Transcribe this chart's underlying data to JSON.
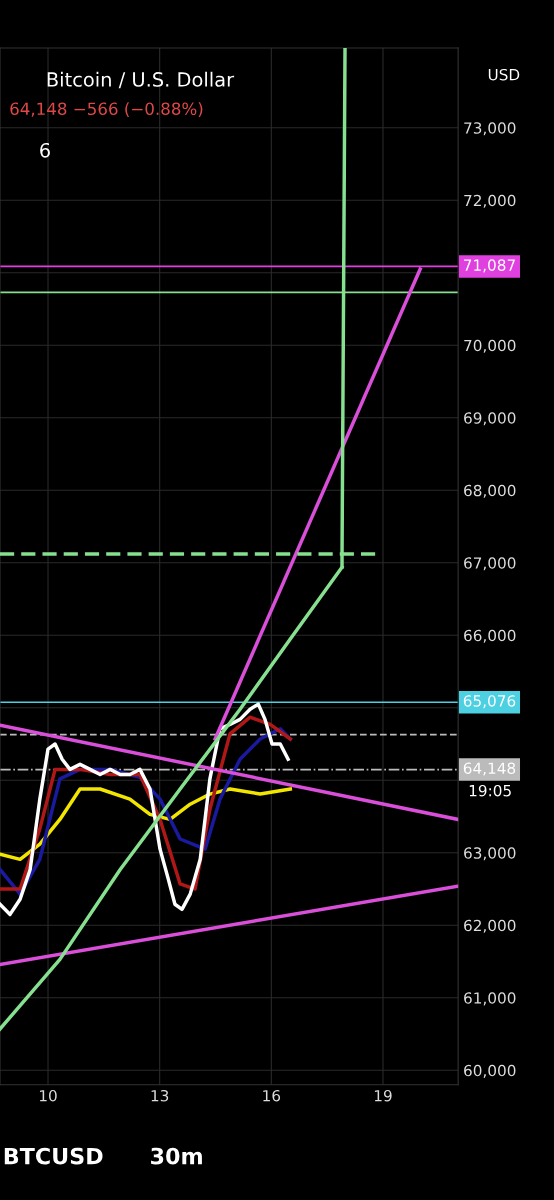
{
  "chart_data": {
    "type": "line",
    "title": "Bitcoin / U.S. Dollar",
    "subtitle": "64,148 −566 (−0.88%)",
    "annotations": [
      "6",
      "USD",
      "19:05",
      "BTCUSD",
      "30m"
    ],
    "xlim": [
      8.71,
      21.02
    ],
    "xticks": [
      10,
      13,
      16,
      19
    ],
    "ylim": [
      59800,
      74100
    ],
    "yticks": [
      {
        "value": 60000,
        "label": "60,000"
      },
      {
        "value": 61000,
        "label": "61,000"
      },
      {
        "value": 62000,
        "label": "62,000"
      },
      {
        "value": 63000,
        "label": "63,000"
      },
      {
        "value": 64000,
        "label": null
      },
      {
        "value": 65000,
        "label": null
      },
      {
        "value": 66000,
        "label": "66,000"
      },
      {
        "value": 67000,
        "label": "67,000"
      },
      {
        "value": 68000,
        "label": "68,000"
      },
      {
        "value": 69000,
        "label": "69,000"
      },
      {
        "value": 70000,
        "label": "70,000"
      },
      {
        "value": 71000,
        "label": null
      },
      {
        "value": 72000,
        "label": "72,000"
      },
      {
        "value": 73000,
        "label": "73,000"
      }
    ],
    "grid": true,
    "legend": false,
    "marker": "none",
    "line_style": "solid",
    "series": [
      {
        "color": "#f2e600",
        "x": [
          8.71,
          9.25,
          9.78,
          10.32,
          10.86,
          11.4,
          12.2,
          12.74,
          13.28,
          13.82,
          14.35,
          14.89,
          15.7,
          16.51
        ],
        "values": [
          62980,
          62910,
          63120,
          63460,
          63880,
          63880,
          63740,
          63530,
          63460,
          63670,
          63810,
          63880,
          63810,
          63880
        ]
      },
      {
        "color": "#1a1aa0",
        "x": [
          8.71,
          9.25,
          9.78,
          10.32,
          10.86,
          11.67,
          12.47,
          13.01,
          13.55,
          14.22,
          14.62,
          15.16,
          15.7,
          16.24,
          16.51
        ],
        "values": [
          62770,
          62430,
          62910,
          64020,
          64150,
          64150,
          64040,
          63740,
          63190,
          63050,
          63740,
          64290,
          64570,
          64710,
          64570
        ]
      },
      {
        "color": "#b01818",
        "x": [
          8.71,
          9.25,
          9.78,
          10.19,
          10.86,
          11.67,
          12.47,
          13.01,
          13.55,
          13.95,
          14.35,
          14.89,
          15.43,
          15.97,
          16.51
        ],
        "values": [
          62500,
          62500,
          63330,
          64150,
          64150,
          64080,
          64080,
          63460,
          62570,
          62500,
          63600,
          64640,
          64870,
          64770,
          64570
        ]
      },
      {
        "color": "#ffffff",
        "x": [
          8.71,
          8.98,
          9.25,
          9.52,
          9.78,
          10.0,
          10.19,
          10.38,
          10.59,
          10.86,
          11.13,
          11.4,
          11.67,
          11.94,
          12.2,
          12.47,
          12.74,
          13.01,
          13.23,
          13.41,
          13.6,
          13.82,
          14.09,
          14.35,
          14.62,
          14.89,
          15.16,
          15.43,
          15.65,
          15.83,
          16.02,
          16.24,
          16.45
        ],
        "values": [
          62290,
          62150,
          62360,
          62770,
          63740,
          64430,
          64500,
          64290,
          64150,
          64220,
          64150,
          64080,
          64150,
          64080,
          64080,
          64150,
          63880,
          63050,
          62640,
          62290,
          62220,
          62430,
          62910,
          64020,
          64710,
          64770,
          64840,
          64980,
          65050,
          64840,
          64500,
          64500,
          64290
        ]
      },
      {
        "color": "#d94fd9",
        "x": [
          8.71,
          21.02
        ],
        "values": [
          64760,
          63460
        ]
      },
      {
        "color": "#d94fd9",
        "x": [
          8.71,
          21.02
        ],
        "values": [
          61460,
          62540
        ]
      },
      {
        "color": "#d94fd9",
        "x": [
          14.49,
          20.0
        ],
        "values": [
          64570,
          71050
        ]
      },
      {
        "color": "#86e08f",
        "x": [
          8.71,
          10.32,
          11.94,
          13.55,
          15.16,
          16.51,
          17.9
        ],
        "values": [
          60570,
          61530,
          62770,
          63880,
          64980,
          65950,
          66940
        ]
      },
      {
        "color": "#86e08f",
        "x": [
          17.9,
          17.9,
          17.98
        ],
        "values": [
          66940,
          67120,
          74100
        ]
      },
      {
        "color": "#86e08f",
        "x": [
          8.71,
          18.79
        ],
        "values": [
          67120,
          67120
        ],
        "line_style": "dashed"
      }
    ],
    "ref_lines": [
      {
        "axis": "y",
        "value": 71087,
        "label": "71,087",
        "color": "#e040e0"
      },
      {
        "axis": "y",
        "value": 70730,
        "color": "#86e08f"
      },
      {
        "axis": "y",
        "value": 65076,
        "label": "65,076",
        "color": "#4dd0e1"
      },
      {
        "axis": "y",
        "value": 64630,
        "color": "#bbbbbb",
        "line_style": "dashed"
      },
      {
        "axis": "y",
        "value": 64148,
        "label": "64,148",
        "color": "#bbbbbb",
        "line_style": "dashdot"
      }
    ]
  }
}
